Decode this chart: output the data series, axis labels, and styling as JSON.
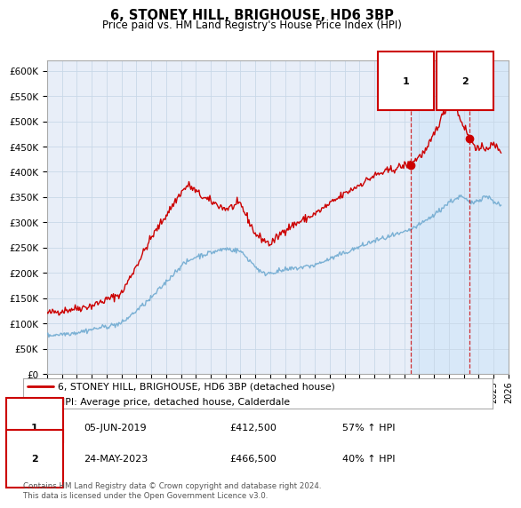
{
  "title": "6, STONEY HILL, BRIGHOUSE, HD6 3BP",
  "subtitle": "Price paid vs. HM Land Registry's House Price Index (HPI)",
  "legend_line1": "6, STONEY HILL, BRIGHOUSE, HD6 3BP (detached house)",
  "legend_line2": "HPI: Average price, detached house, Calderdale",
  "sale1_date": "05-JUN-2019",
  "sale1_price": "£412,500",
  "sale1_hpi": "57% ↑ HPI",
  "sale2_date": "24-MAY-2023",
  "sale2_price": "£466,500",
  "sale2_hpi": "40% ↑ HPI",
  "footnote": "Contains HM Land Registry data © Crown copyright and database right 2024.\nThis data is licensed under the Open Government Licence v3.0.",
  "red_color": "#cc0000",
  "blue_color": "#7ab0d4",
  "marker_color": "#cc0000",
  "grid_color": "#c8d8e8",
  "background_plot": "#e8eef8",
  "background_highlight": "#d8e8f8",
  "background_fig": "#ffffff",
  "ylim_min": 0,
  "ylim_max": 620000,
  "yticks": [
    0,
    50000,
    100000,
    150000,
    200000,
    250000,
    300000,
    350000,
    400000,
    450000,
    500000,
    550000,
    600000
  ],
  "ytick_labels": [
    "£0",
    "£50K",
    "£100K",
    "£150K",
    "£200K",
    "£250K",
    "£300K",
    "£350K",
    "£400K",
    "£450K",
    "£500K",
    "£550K",
    "£600K"
  ],
  "sale1_year": 2019.43,
  "sale1_value": 412500,
  "sale2_year": 2023.39,
  "sale2_value": 466500,
  "xmin": 1995.0,
  "xmax": 2026.0
}
